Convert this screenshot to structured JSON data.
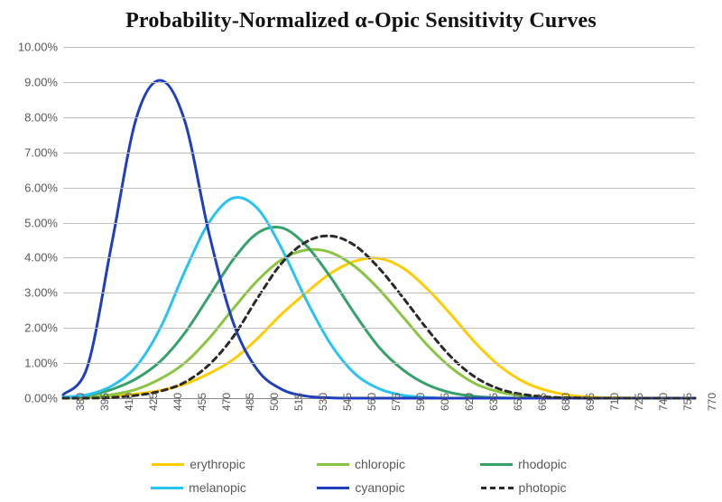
{
  "chart": {
    "type": "line",
    "title": "Probability-Normalized α-Opic Sensitivity Curves",
    "title_fontsize": 24,
    "title_fontweight": "bold",
    "background_color": "#ffffff",
    "grid_color": "#bfbfbf",
    "axis_color": "#888888",
    "font_family": "Georgia, serif",
    "label_font_family": "Arial, sans-serif",
    "label_fontsize": 13,
    "line_width": 3,
    "x_values": [
      380,
      395,
      410,
      425,
      440,
      455,
      470,
      485,
      500,
      515,
      530,
      545,
      560,
      575,
      590,
      605,
      620,
      635,
      650,
      665,
      680,
      695,
      710,
      725,
      740,
      755,
      770
    ],
    "x_tick_labels": [
      "380",
      "395",
      "410",
      "425",
      "440",
      "455",
      "470",
      "485",
      "500",
      "515",
      "530",
      "545",
      "560",
      "575",
      "590",
      "605",
      "620",
      "635",
      "650",
      "665",
      "680",
      "695",
      "710",
      "725",
      "740",
      "755",
      "770"
    ],
    "xlim": [
      380,
      770
    ],
    "ylim": [
      0,
      10
    ],
    "y_ticks": [
      {
        "v": 0,
        "label": "0.00%"
      },
      {
        "v": 1,
        "label": "1.00%"
      },
      {
        "v": 2,
        "label": "2.00%"
      },
      {
        "v": 3,
        "label": "3.00%"
      },
      {
        "v": 4,
        "label": "4.00%"
      },
      {
        "v": 5,
        "label": "5.00%"
      },
      {
        "v": 6,
        "label": "6.00%"
      },
      {
        "v": 7,
        "label": "7.00%"
      },
      {
        "v": 8,
        "label": "8.00%"
      },
      {
        "v": 9,
        "label": "9.00%"
      },
      {
        "v": 10,
        "label": "10.00%"
      }
    ],
    "series": [
      {
        "key": "erythropic",
        "label": "erythropic",
        "color": "#ffcc00",
        "dash": "none",
        "y": [
          0.0,
          0.01,
          0.05,
          0.12,
          0.22,
          0.4,
          0.7,
          1.1,
          1.7,
          2.4,
          3.0,
          3.55,
          3.9,
          3.98,
          3.7,
          3.1,
          2.35,
          1.55,
          0.9,
          0.45,
          0.2,
          0.07,
          0.02,
          0.01,
          0.0,
          0.0,
          0.0
        ]
      },
      {
        "key": "chloropic",
        "label": "chloropic",
        "color": "#89c540",
        "dash": "none",
        "y": [
          0.0,
          0.03,
          0.1,
          0.25,
          0.55,
          1.0,
          1.7,
          2.55,
          3.35,
          3.95,
          4.22,
          4.15,
          3.75,
          3.1,
          2.3,
          1.5,
          0.85,
          0.4,
          0.17,
          0.06,
          0.02,
          0.01,
          0.0,
          0.0,
          0.0,
          0.0,
          0.0
        ]
      },
      {
        "key": "rhodopic",
        "label": "rhodopic",
        "color": "#35a16b",
        "dash": "none",
        "y": [
          0.02,
          0.08,
          0.25,
          0.55,
          1.05,
          1.85,
          2.9,
          3.95,
          4.7,
          4.85,
          4.35,
          3.45,
          2.4,
          1.45,
          0.8,
          0.38,
          0.15,
          0.05,
          0.01,
          0.0,
          0.0,
          0.0,
          0.0,
          0.0,
          0.0,
          0.0,
          0.0
        ]
      },
      {
        "key": "melanopic",
        "label": "melanopic",
        "color": "#29c3f2",
        "dash": "none",
        "y": [
          0.03,
          0.1,
          0.35,
          0.9,
          2.0,
          3.6,
          5.0,
          5.7,
          5.4,
          4.25,
          2.8,
          1.55,
          0.7,
          0.27,
          0.08,
          0.02,
          0.0,
          0.0,
          0.0,
          0.0,
          0.0,
          0.0,
          0.0,
          0.0,
          0.0,
          0.0,
          0.0
        ]
      },
      {
        "key": "cyanopic",
        "label": "cyanopic",
        "color": "#1f3fbf",
        "dash": "none",
        "y": [
          0.1,
          0.9,
          4.4,
          7.95,
          9.05,
          7.9,
          4.7,
          2.15,
          0.8,
          0.25,
          0.06,
          0.01,
          0.0,
          0.0,
          0.0,
          0.0,
          0.0,
          0.0,
          0.0,
          0.0,
          0.0,
          0.0,
          0.0,
          0.0,
          0.0,
          0.0,
          0.0
        ]
      },
      {
        "key": "photopic",
        "label": "photopic",
        "color": "#2a2a2a",
        "dash": "6,5",
        "y": [
          0.0,
          0.0,
          0.02,
          0.08,
          0.2,
          0.45,
          0.95,
          1.75,
          2.85,
          3.85,
          4.45,
          4.62,
          4.35,
          3.7,
          2.85,
          1.95,
          1.15,
          0.58,
          0.25,
          0.1,
          0.03,
          0.01,
          0.0,
          0.0,
          0.0,
          0.0,
          0.0
        ]
      }
    ]
  }
}
